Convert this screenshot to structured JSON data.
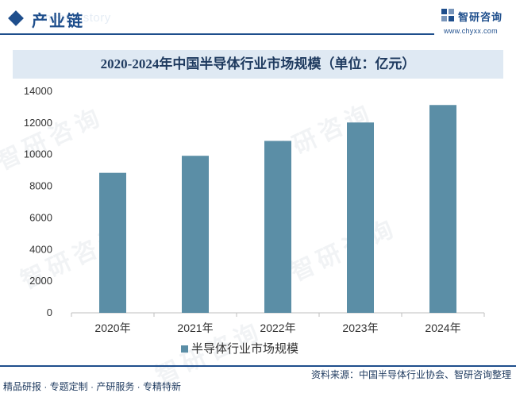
{
  "header": {
    "section_title": "产业链",
    "section_bg_text": "ment history",
    "logo_name": "智研咨询",
    "logo_url": "www.chyxx.com"
  },
  "watermark_text": "智研咨询",
  "colors": {
    "brand": "#1e4e8c",
    "bar": "#5b8ea6",
    "title_band": "#dfe9f3"
  },
  "chart_data": {
    "type": "bar",
    "title": "2020-2024年中国半导体行业市场规模（单位：亿元）",
    "categories": [
      "2020年",
      "2021年",
      "2022年",
      "2023年",
      "2024年"
    ],
    "series": [
      {
        "name": "半导体行业市场规模",
        "values": [
          8848,
          9925,
          10866,
          12030,
          13134
        ]
      }
    ],
    "ylim": [
      0,
      14000
    ],
    "yticks": [
      0,
      2000,
      4000,
      6000,
      8000,
      10000,
      12000,
      14000
    ],
    "grid": false,
    "legend": "bottom"
  },
  "footer": {
    "left_text": "精品研报 · 专题定制 · 产研服务 · 专精特新",
    "source_text": "资料来源：中国半导体行业协会、智研咨询整理"
  }
}
